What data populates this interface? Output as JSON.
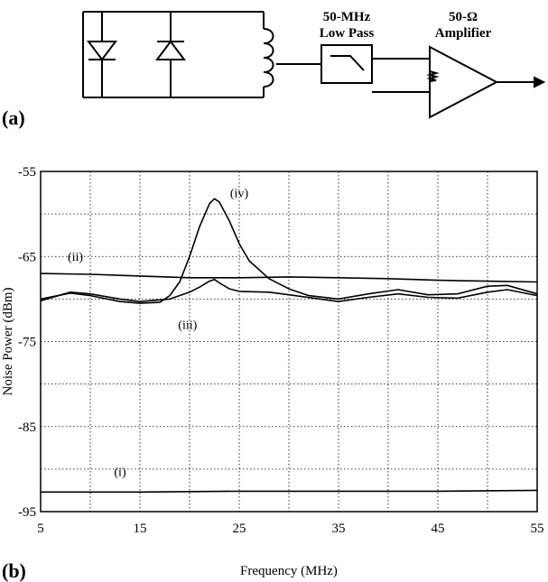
{
  "figure": {
    "panel_a_label": "(a)",
    "panel_b_label": "(b)",
    "circuit": {
      "filter_label_line1": "50-MHz",
      "filter_label_line2": "Low Pass",
      "amp_label_line1": "50-Ω",
      "amp_label_line2": "Amplifier"
    }
  },
  "chart_data": {
    "type": "line",
    "xlabel": "Frequency (MHz)",
    "ylabel": "Noise Power (dBm)",
    "xlim": [
      5,
      55
    ],
    "ylim": [
      -95,
      -55
    ],
    "x_ticks": [
      5,
      15,
      25,
      35,
      45,
      55
    ],
    "y_ticks": [
      -95,
      -85,
      -75,
      -65,
      -55
    ],
    "x_minor_grid": [
      10,
      20,
      30,
      40,
      50
    ],
    "y_minor_grid": [
      -90,
      -80,
      -70,
      -60
    ],
    "grid": true,
    "series": [
      {
        "name": "(i)",
        "x": [
          5,
          15,
          25,
          35,
          45,
          55
        ],
        "y": [
          -92.7,
          -92.7,
          -92.6,
          -92.6,
          -92.6,
          -92.5
        ],
        "label_at": [
          13,
          -90.8
        ]
      },
      {
        "name": "(ii)",
        "x": [
          5,
          10,
          15,
          20,
          25,
          30,
          35,
          40,
          45,
          50,
          55
        ],
        "y": [
          -67.0,
          -67.1,
          -67.3,
          -67.5,
          -67.5,
          -67.4,
          -67.5,
          -67.6,
          -67.8,
          -67.9,
          -68.0
        ],
        "label_at": [
          8.5,
          -65.5
        ]
      },
      {
        "name": "(iii)",
        "x": [
          5,
          8,
          10,
          13,
          15,
          18,
          20,
          21,
          22,
          22.5,
          23,
          24,
          25,
          28,
          30,
          35,
          38,
          41,
          44,
          47,
          50,
          52,
          55
        ],
        "y": [
          -70.2,
          -69.2,
          -69.4,
          -70.0,
          -70.3,
          -70.0,
          -69.2,
          -68.6,
          -67.9,
          -67.7,
          -68.1,
          -68.8,
          -69.1,
          -69.2,
          -69.5,
          -70.3,
          -69.8,
          -69.4,
          -69.8,
          -69.9,
          -69.2,
          -68.9,
          -69.6
        ],
        "label_at": [
          19.8,
          -73.5
        ]
      },
      {
        "name": "(iv)",
        "x": [
          5,
          8,
          10,
          13,
          15,
          17,
          18,
          19,
          20,
          21,
          22,
          22.5,
          23,
          24,
          25,
          26,
          28,
          30,
          32,
          35,
          38,
          41,
          44,
          47,
          50,
          52,
          55
        ],
        "y": [
          -70.0,
          -69.3,
          -69.6,
          -70.3,
          -70.5,
          -70.4,
          -69.6,
          -68.0,
          -65.0,
          -61.5,
          -58.8,
          -58.2,
          -58.6,
          -60.8,
          -63.5,
          -65.5,
          -67.6,
          -68.8,
          -69.6,
          -70.0,
          -69.4,
          -68.9,
          -69.5,
          -69.4,
          -68.5,
          -68.4,
          -69.4
        ],
        "label_at": [
          25,
          -58
        ]
      }
    ]
  }
}
